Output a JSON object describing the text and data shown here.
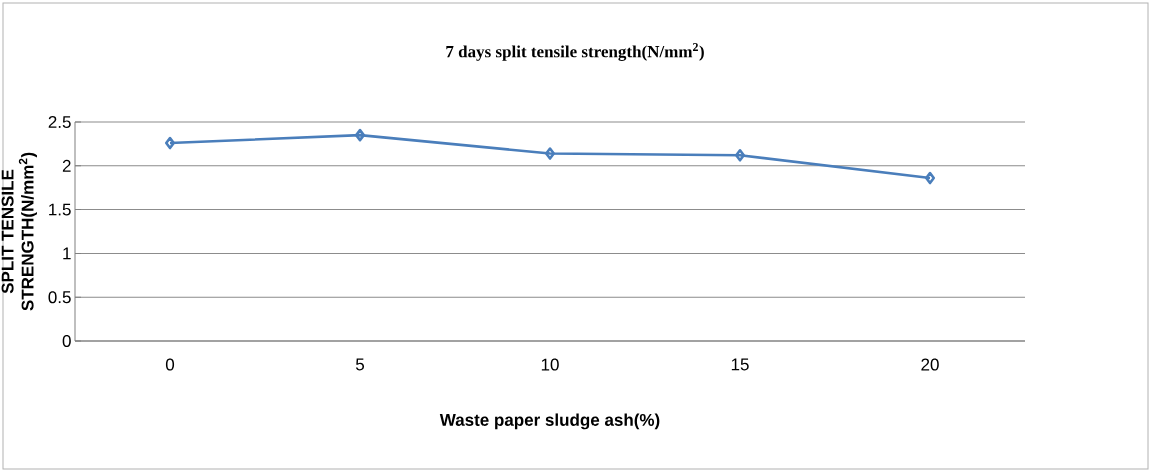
{
  "chart_data": {
    "type": "line",
    "title": "7 days split tensile strength(N/mm$^{2}$)",
    "xlabel": "Waste paper sludge ash(%)",
    "ylabel": "SPLIT TENSILE STRENGTH(N/mm$^{2}$)",
    "categories": [
      "0",
      "5",
      "10",
      "15",
      "20"
    ],
    "series": [
      {
        "color": "#4a7ebb",
        "values": [
          2.26,
          2.35,
          2.14,
          2.12,
          1.86
        ]
      }
    ],
    "ylim": [
      0,
      2.5
    ],
    "yticks": [
      0,
      {
        "value": 0.5,
        "label": "0.5"
      },
      1,
      {
        "value": 1.5,
        "label": "1.5"
      },
      2,
      {
        "value": 2.5,
        "label": "2.5"
      }
    ],
    "grid": "y",
    "marker": "diamond",
    "line_style": "solid"
  }
}
